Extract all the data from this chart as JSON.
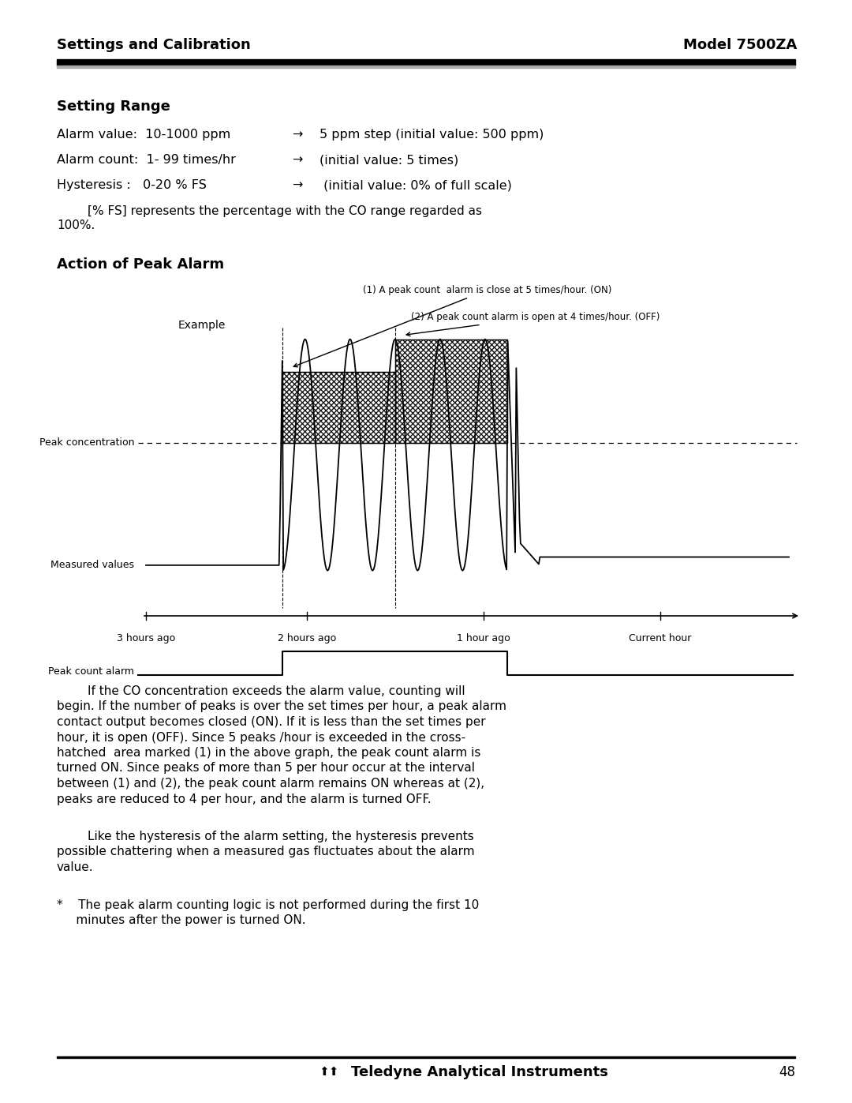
{
  "bg_color": "#ffffff",
  "header_left": "Settings and Calibration",
  "header_right": "Model 7500ZA",
  "section1_title": "Setting Range",
  "setting_rows": [
    {
      "left": "Alarm value:  10-1000 ppm",
      "arrow": "→",
      "right": "5 ppm step (initial value: 500 ppm)"
    },
    {
      "left": "Alarm count:  1- 99 times/hr",
      "arrow": "→",
      "right": "(initial value: 5 times)"
    },
    {
      "left": "Hysteresis :   0-20 % FS",
      "arrow": "→",
      "right": " (initial value: 0% of full scale)"
    }
  ],
  "fs_note_line1": "        [% FS] represents the percentage with the CO range regarded as",
  "fs_note_line2": "100%.",
  "section2_title": "Action of Peak Alarm",
  "diagram_label_example": "Example",
  "diagram_annotation1": "(1) A peak count  alarm is close at 5 times/hour. (ON)",
  "diagram_annotation2": "(2) A peak count alarm is open at 4 times/hour. (OFF)",
  "diagram_label_peak_conc": "Peak concentration",
  "diagram_label_measured": "Measured values",
  "diagram_label_peak_alarm": "Peak count alarm",
  "time_labels": [
    "3 hours ago",
    "2 hours ago",
    "1 hour ago",
    "Current hour"
  ],
  "body_lines1": [
    "        If the CO concentration exceeds the alarm value, counting will",
    "begin. If the number of peaks is over the set times per hour, a peak alarm",
    "contact output becomes closed (ON). If it is less than the set times per",
    "hour, it is open (OFF). Since 5 peaks /hour is exceeded in the cross-",
    "hatched  area marked (1) in the above graph, the peak count alarm is",
    "turned ON. Since peaks of more than 5 per hour occur at the interval",
    "between (1) and (2), the peak count alarm remains ON whereas at (2),",
    "peaks are reduced to 4 per hour, and the alarm is turned OFF."
  ],
  "body_lines2": [
    "        Like the hysteresis of the alarm setting, the hysteresis prevents",
    "possible chattering when a measured gas fluctuates about the alarm",
    "value."
  ],
  "footer_note_line1": "*    The peak alarm counting logic is not performed during the first 10",
  "footer_note_line2": "     minutes after the power is turned ON.",
  "footer_text": "Teledyne Analytical Instruments",
  "footer_page": "48"
}
